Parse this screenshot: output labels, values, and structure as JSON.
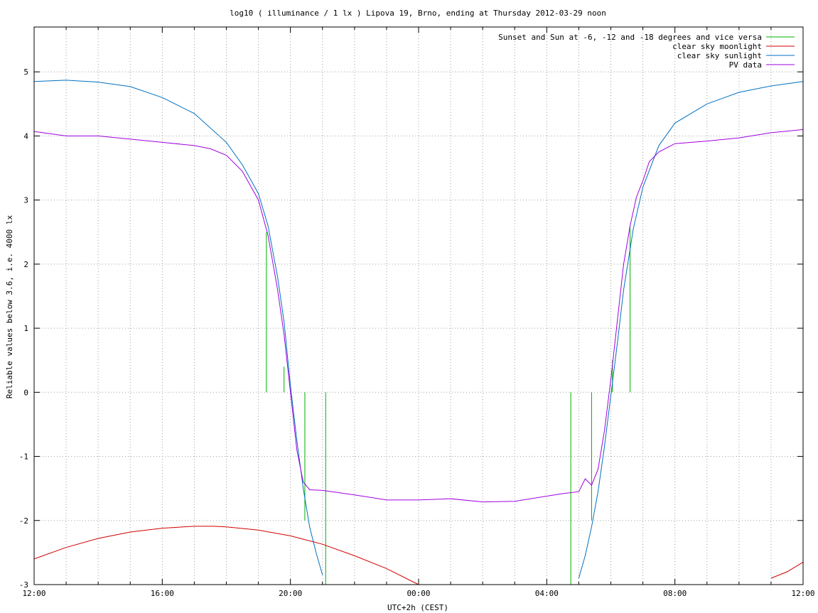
{
  "chart_data": {
    "type": "line",
    "title": "log10 ( illuminance / 1 lx ) Lipova 19, Brno, ending at Thursday 2012-03-29 noon",
    "xlabel": "UTC+2h (CEST)",
    "ylabel": "Reliable values below 3.6, i.e. 4000 lx",
    "xlim": [
      0,
      24
    ],
    "ylim": [
      -3,
      5.7
    ],
    "x_tick_labels": [
      "12:00",
      "16:00",
      "20:00",
      "00:00",
      "04:00",
      "08:00",
      "12:00"
    ],
    "x_tick_hours": [
      0,
      4,
      8,
      12,
      16,
      20,
      24
    ],
    "y_ticks": [
      -3,
      -2,
      -1,
      0,
      1,
      2,
      3,
      4,
      5
    ],
    "y_tick_labels": [
      "-3",
      "-2",
      "-1",
      "0",
      "1",
      "2",
      "3",
      "4",
      "5"
    ],
    "grid": true,
    "legend_position": "top-right",
    "series": [
      {
        "name": "Sunset and Sun at -6, -12 and -18 degrees and vice versa",
        "color": "#00b000",
        "type": "vertical-markers",
        "markers": [
          {
            "x": 7.25,
            "y0": 0,
            "y1": 2.5
          },
          {
            "x": 7.8,
            "y0": 0,
            "y1": 0.4
          },
          {
            "x": 8.45,
            "y0": -2.0,
            "y1": 0
          },
          {
            "x": 9.1,
            "y0": -3,
            "y1": 0
          },
          {
            "x": 16.75,
            "y0": -3,
            "y1": 0
          },
          {
            "x": 17.4,
            "y0": -2.0,
            "y1": 0
          },
          {
            "x": 18.05,
            "y0": 0,
            "y1": 0.5
          },
          {
            "x": 18.6,
            "y0": 0,
            "y1": 2.6
          }
        ]
      },
      {
        "name": "clear sky moonlight",
        "color": "#d00000",
        "x": [
          0,
          1,
          2,
          3,
          4,
          5,
          5.6,
          6,
          7,
          8,
          9,
          10,
          11,
          12,
          12.3,
          22.6,
          23,
          23.5,
          24
        ],
        "y": [
          -2.6,
          -2.42,
          -2.28,
          -2.18,
          -2.12,
          -2.09,
          -2.09,
          -2.1,
          -2.15,
          -2.24,
          -2.37,
          -2.55,
          -2.75,
          -3.0,
          -3.1,
          -3.1,
          -2.9,
          -2.8,
          -2.65
        ]
      },
      {
        "name": "clear sky sunlight",
        "color": "#0070c0",
        "x": [
          0,
          1,
          2,
          3,
          4,
          5,
          6,
          6.5,
          7,
          7.3,
          7.6,
          7.8,
          8.0,
          8.2,
          8.4,
          8.6,
          8.8,
          9.0,
          9.2,
          16.9,
          17.0,
          17.2,
          17.4,
          17.6,
          17.8,
          18.0,
          18.2,
          18.4,
          18.7,
          19.0,
          19.5,
          20,
          21,
          22,
          23,
          24
        ],
        "y": [
          4.85,
          4.87,
          4.84,
          4.77,
          4.6,
          4.35,
          3.9,
          3.55,
          3.1,
          2.6,
          1.8,
          1.1,
          0.1,
          -0.75,
          -1.5,
          -2.1,
          -2.5,
          -2.85,
          -3.1,
          -3.1,
          -2.9,
          -2.55,
          -2.1,
          -1.55,
          -0.85,
          -0.05,
          0.75,
          1.6,
          2.55,
          3.2,
          3.85,
          4.2,
          4.5,
          4.68,
          4.78,
          4.85
        ]
      },
      {
        "name": "PV data",
        "color": "#a000e0",
        "x": [
          0,
          1,
          2,
          3,
          4,
          5,
          5.5,
          6,
          6.5,
          7,
          7.3,
          7.6,
          7.8,
          8.0,
          8.2,
          8.4,
          8.6,
          9,
          10,
          11,
          12,
          13,
          14,
          15,
          16,
          16.5,
          17,
          17.2,
          17.4,
          17.6,
          17.8,
          18.0,
          18.2,
          18.4,
          18.6,
          18.8,
          19.0,
          19.2,
          19.5,
          20,
          21,
          22,
          23,
          24
        ],
        "y": [
          4.07,
          4.0,
          4.0,
          3.95,
          3.9,
          3.85,
          3.8,
          3.7,
          3.45,
          3.0,
          2.45,
          1.6,
          0.9,
          0.0,
          -0.9,
          -1.4,
          -1.52,
          -1.53,
          -1.6,
          -1.68,
          -1.68,
          -1.66,
          -1.71,
          -1.7,
          -1.62,
          -1.58,
          -1.55,
          -1.35,
          -1.45,
          -1.2,
          -0.6,
          0.2,
          1.1,
          2.0,
          2.6,
          3.05,
          3.3,
          3.6,
          3.75,
          3.88,
          3.92,
          3.97,
          4.05,
          4.1
        ]
      }
    ]
  }
}
